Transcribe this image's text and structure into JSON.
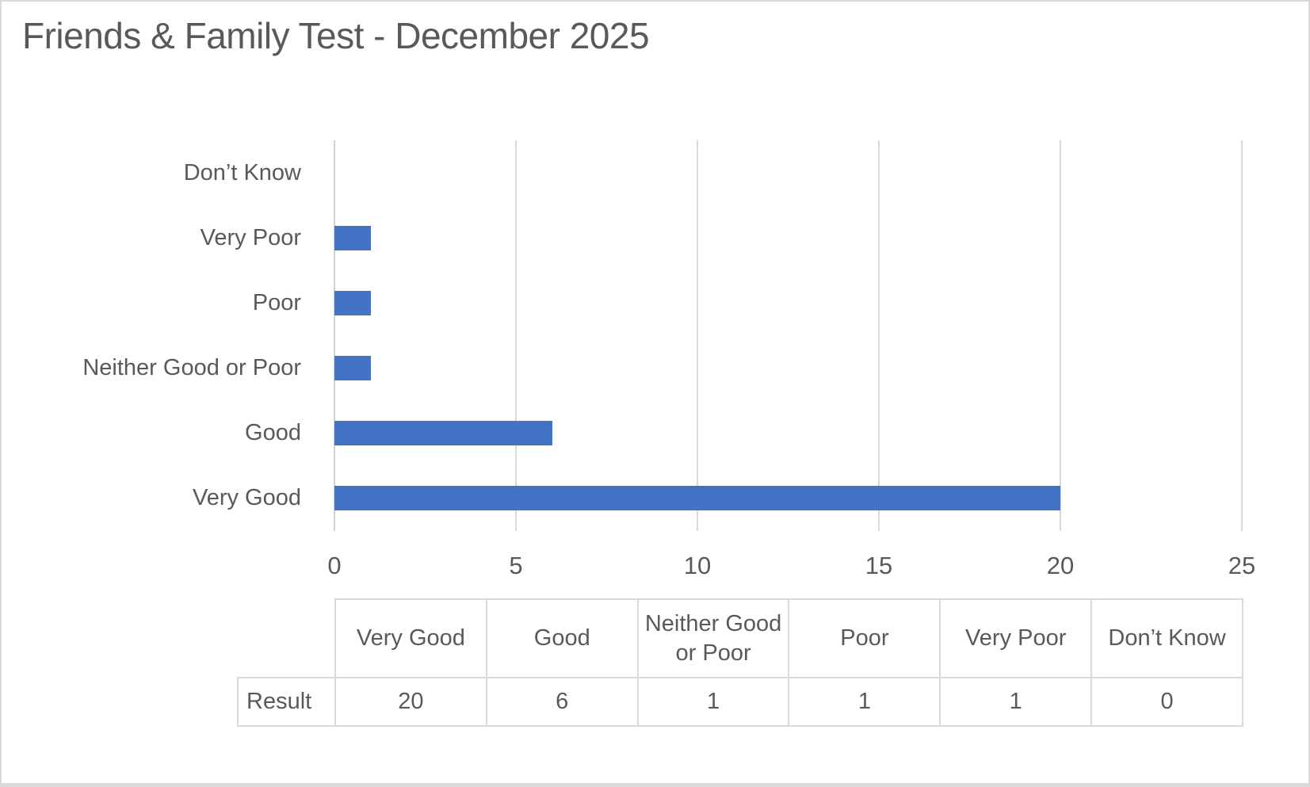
{
  "title": "Friends & Family Test - December 2025",
  "colors": {
    "bar": "#4472c4",
    "gridline": "#d9d9d9",
    "text": "#595959",
    "frame_border": "#d9d9d9",
    "background": "#ffffff"
  },
  "chart_data": {
    "type": "bar",
    "orientation": "horizontal",
    "title": "Friends & Family Test - December 2025",
    "categories_top_to_bottom": [
      "Don’t Know",
      "Very Poor",
      "Poor",
      "Neither Good or Poor",
      "Good",
      "Very Good"
    ],
    "values_top_to_bottom": [
      0,
      1,
      1,
      1,
      6,
      20
    ],
    "xlim": [
      0,
      25
    ],
    "x_ticks": [
      0,
      5,
      10,
      15,
      20,
      25
    ],
    "grid": true,
    "legend": false,
    "xlabel": "",
    "ylabel": ""
  },
  "data_table": {
    "row_label": "Result",
    "columns": [
      "Very Good",
      "Good",
      "Neither Good or Poor",
      "Poor",
      "Very Poor",
      "Don’t Know"
    ],
    "values": [
      20,
      6,
      1,
      1,
      1,
      0
    ]
  }
}
